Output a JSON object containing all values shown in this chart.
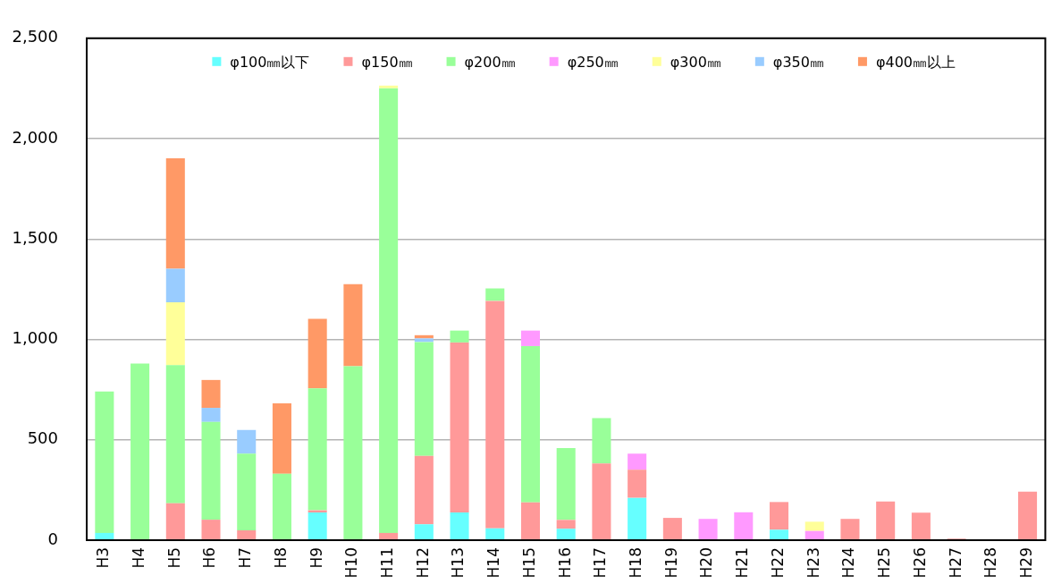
{
  "chart_data": {
    "type": "bar",
    "stacked": true,
    "categories": [
      "H3",
      "H4",
      "H5",
      "H6",
      "H7",
      "H8",
      "H9",
      "H10",
      "H11",
      "H12",
      "H13",
      "H14",
      "H15",
      "H16",
      "H17",
      "H18",
      "H19",
      "H20",
      "H21",
      "H22",
      "H23",
      "H24",
      "H25",
      "H26",
      "H27",
      "H28",
      "H29"
    ],
    "series": [
      {
        "name": "φ100㎜以下",
        "color": "#66ffff",
        "values": [
          36,
          0,
          0,
          0,
          0,
          0,
          138,
          0,
          0,
          79,
          138,
          59,
          0,
          57,
          0,
          211,
          0,
          0,
          0,
          52,
          0,
          0,
          0,
          0,
          0,
          0,
          0
        ]
      },
      {
        "name": "φ150㎜",
        "color": "#ff9999",
        "values": [
          0,
          0,
          184,
          102,
          49,
          0,
          11,
          0,
          36,
          341,
          847,
          1133,
          188,
          44,
          382,
          140,
          111,
          0,
          0,
          138,
          0,
          106,
          193,
          137,
          8,
          0,
          242
        ]
      },
      {
        "name": "φ200㎜",
        "color": "#99ff99",
        "values": [
          705,
          880,
          688,
          487,
          382,
          331,
          607,
          867,
          2215,
          567,
          59,
          62,
          779,
          358,
          226,
          0,
          0,
          0,
          0,
          0,
          0,
          0,
          0,
          0,
          0,
          0,
          0
        ]
      },
      {
        "name": "φ250㎜",
        "color": "#ff99ff",
        "values": [
          0,
          0,
          0,
          0,
          0,
          0,
          0,
          0,
          0,
          0,
          0,
          0,
          77,
          0,
          0,
          80,
          0,
          106,
          139,
          0,
          46,
          0,
          0,
          0,
          0,
          0,
          0
        ]
      },
      {
        "name": "φ300㎜",
        "color": "#ffff99",
        "values": [
          0,
          0,
          313,
          0,
          0,
          0,
          0,
          0,
          13,
          0,
          0,
          0,
          0,
          0,
          0,
          0,
          0,
          0,
          0,
          0,
          46,
          0,
          0,
          0,
          0,
          0,
          0
        ]
      },
      {
        "name": "φ350㎜",
        "color": "#99ccff",
        "values": [
          0,
          0,
          167,
          70,
          118,
          0,
          0,
          0,
          0,
          18,
          0,
          0,
          0,
          0,
          0,
          0,
          0,
          0,
          0,
          0,
          0,
          0,
          0,
          0,
          0,
          0,
          0
        ]
      },
      {
        "name": "φ400㎜以上",
        "color": "#ff9966",
        "values": [
          0,
          0,
          550,
          139,
          0,
          351,
          347,
          408,
          0,
          16,
          0,
          0,
          0,
          0,
          0,
          0,
          0,
          0,
          0,
          0,
          0,
          0,
          0,
          0,
          0,
          0,
          0
        ]
      }
    ],
    "ylim": [
      0,
      2500
    ],
    "yticks": [
      0,
      500,
      {
        "value": 1000,
        "label": "1,000"
      },
      {
        "value": 1500,
        "label": "1,500"
      },
      {
        "value": 2000,
        "label": "2,000"
      },
      {
        "value": 2500,
        "label": "2,500"
      }
    ],
    "grid": "y",
    "legend": "top"
  }
}
